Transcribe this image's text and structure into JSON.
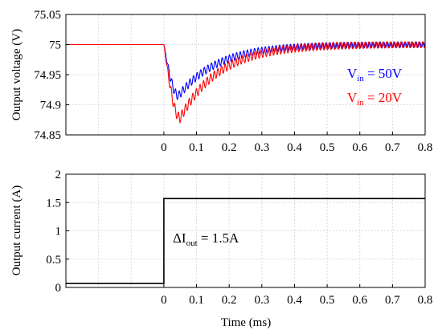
{
  "chart_data": [
    {
      "type": "line",
      "ylabel": "Output voltage (V)",
      "xlim": [
        -0.3,
        0.8
      ],
      "ylim": [
        74.85,
        75.05
      ],
      "x_ticks": [
        0,
        0.1,
        0.2,
        0.3,
        0.4,
        0.5,
        0.6,
        0.7,
        0.8
      ],
      "x_tick_labels": [
        "0",
        "0.1",
        "0.2",
        "0.3",
        "0.4",
        "0.5",
        "0.6",
        "0.7",
        "0.8"
      ],
      "y_ticks": [
        74.85,
        74.9,
        74.95,
        75,
        75.05
      ],
      "y_tick_labels": [
        "74.85",
        "74.9",
        "74.95",
        "75",
        "75.05"
      ],
      "grid": true,
      "series": [
        {
          "color": "#0000ff",
          "pre_value": 75.0,
          "steady_value": 75.0,
          "minimum": 74.915,
          "minimum_time": 0.045,
          "ripple_amplitude": 0.007,
          "ripple_period_ms": 0.011,
          "annotation": {
            "main": "V",
            "sub": "in",
            "rest": " = 50V"
          }
        },
        {
          "color": "#ff0000",
          "pre_value": 75.0,
          "steady_value": 75.0,
          "minimum": 74.878,
          "minimum_time": 0.05,
          "ripple_amplitude": 0.008,
          "ripple_period_ms": 0.011,
          "annotation": {
            "main": "V",
            "sub": "in",
            "rest": " = 20V"
          }
        }
      ]
    },
    {
      "type": "line",
      "xlabel": "Time (ms)",
      "ylabel": "Output current (A)",
      "xlim": [
        -0.3,
        0.8
      ],
      "ylim": [
        0,
        2
      ],
      "x_ticks": [
        0,
        0.1,
        0.2,
        0.3,
        0.4,
        0.5,
        0.6,
        0.7,
        0.8
      ],
      "x_tick_labels": [
        "0",
        "0.1",
        "0.2",
        "0.3",
        "0.4",
        "0.5",
        "0.6",
        "0.7",
        "0.8"
      ],
      "y_ticks": [
        0,
        0.5,
        1,
        1.5,
        2
      ],
      "y_tick_labels": [
        "0",
        "0.5",
        "1",
        "1.5",
        "2"
      ],
      "grid": true,
      "series": [
        {
          "color": "#000000",
          "x": [
            -0.3,
            0,
            0,
            0.8
          ],
          "y": [
            0.07,
            0.07,
            1.57,
            1.57
          ]
        }
      ],
      "annotation": {
        "main": "ΔI",
        "sub": "out",
        "rest": " = 1.5A"
      }
    }
  ]
}
